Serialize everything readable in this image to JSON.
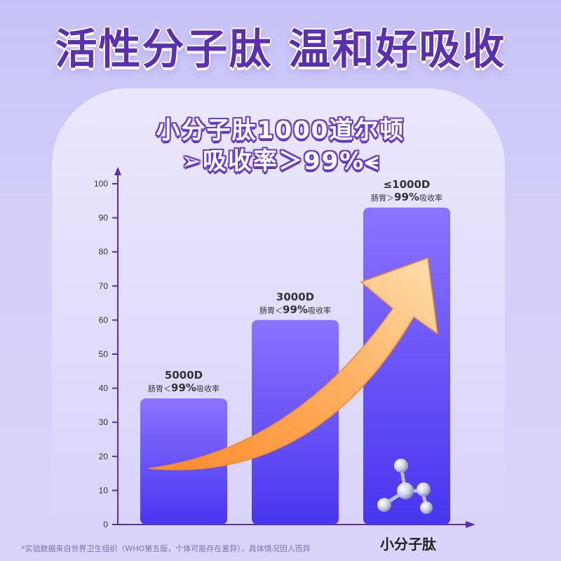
{
  "headline": "活性分子肽 温和好吸收",
  "subtitle_line1": "小分子肽1000道尔顿",
  "subtitle_line2": "➢吸收率＞99%⪪",
  "footnote": "*实验数据来自世界卫生组织（WHO第五版，个体可能存在差异），具体情况因人而异",
  "colors": {
    "headline": "#5a2fb0",
    "bar_top": "#8b73ff",
    "bar_bottom": "#4836f0",
    "axis": "#5a2fb0",
    "arrow": "#ff9a3c"
  },
  "chart_data": {
    "type": "bar",
    "ylim": [
      0,
      100
    ],
    "yticks": [
      0,
      10,
      20,
      30,
      40,
      50,
      60,
      70,
      80,
      90,
      100
    ],
    "categories": [
      "",
      "",
      "小分子肽"
    ],
    "values": [
      37,
      60,
      93
    ],
    "bar_labels": [
      {
        "main": "5000D",
        "sub_pre": "肠胃＜",
        "sub_num": "99%",
        "sub_post": "吸收率"
      },
      {
        "main": "3000D",
        "sub_pre": "肠胃＜",
        "sub_num": "99%",
        "sub_post": "吸收率"
      },
      {
        "main": "≤1000D",
        "sub_pre": "肠胃＞",
        "sub_num": "99%",
        "sub_post": "吸收率"
      }
    ],
    "annotation": "upward-trend-arrow",
    "icon": "molecule-icon"
  }
}
